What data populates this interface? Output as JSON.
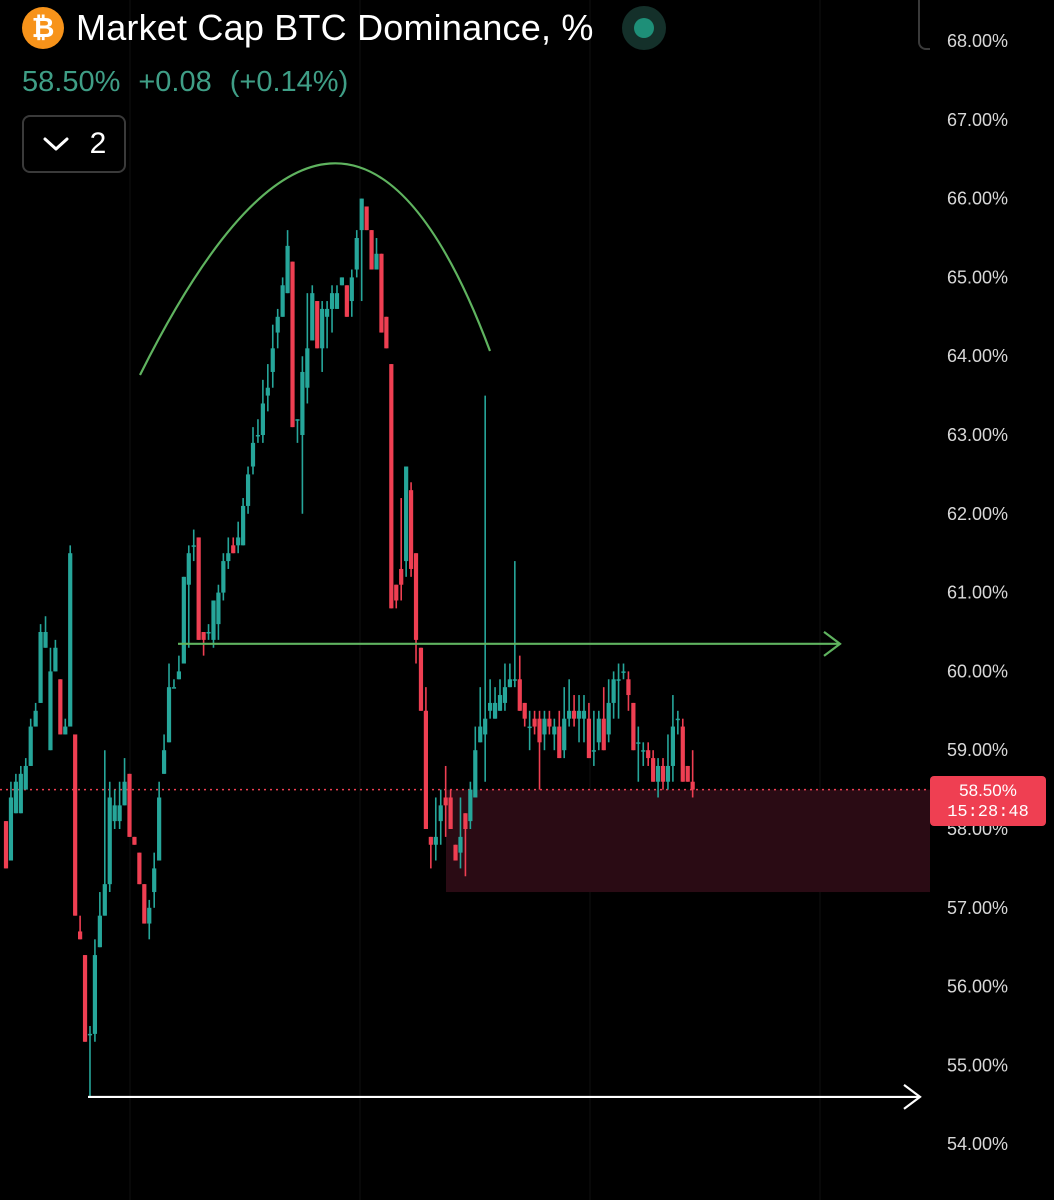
{
  "header": {
    "coin_symbol": "₿",
    "title": "Market Cap BTC Dominance, %",
    "last_value": "58.50%",
    "change_abs": "+0.08",
    "change_pct": "(+0.14%)",
    "collapse_count": "2"
  },
  "icons": {
    "coin": "bitcoin-icon",
    "live": "live-status-dot-icon",
    "collapse": "chevron-down-icon"
  },
  "colors": {
    "background": "#000000",
    "up": "#26a69a",
    "down": "#ef3f52",
    "coin": "#f7931a",
    "annotation_green": "#5fb35f",
    "annotation_white": "#ffffff",
    "zone_fill": "#2a0b14",
    "current_price_line": "#ef3f52",
    "quote_text": "#3f9e86",
    "live_dot": "#1e8f78"
  },
  "price_tag": {
    "value": "58.50%",
    "countdown": "15:28:48"
  },
  "chart_data": {
    "type": "candlestick",
    "title": "Market Cap BTC Dominance, %",
    "y_axis_labels": [
      "68.00%",
      "67.00%",
      "66.00%",
      "65.00%",
      "64.00%",
      "63.00%",
      "62.00%",
      "61.00%",
      "60.00%",
      "59.00%",
      "58.00%",
      "57.00%",
      "56.00%",
      "55.00%",
      "54.00%"
    ],
    "ylim": [
      53.7,
      68.5
    ],
    "y_axis_position": "right",
    "grid": "faint vertical only",
    "current_price": 58.5,
    "candles": [
      [
        58.1,
        58.1,
        57.5,
        57.4
      ],
      [
        57.6,
        57.8,
        58.4,
        58.6
      ],
      [
        58.2,
        58.2,
        58.6,
        58.7
      ],
      [
        58.2,
        58.2,
        58.7,
        58.8
      ],
      [
        58.5,
        58.5,
        58.8,
        58.9
      ],
      [
        58.8,
        58.8,
        59.3,
        59.4
      ],
      [
        59.3,
        59.3,
        59.5,
        59.6
      ],
      [
        59.6,
        59.6,
        60.5,
        60.6
      ],
      [
        60.3,
        60.3,
        60.5,
        60.7
      ],
      [
        59.0,
        59.0,
        60.0,
        60.3
      ],
      [
        60.0,
        60.0,
        60.3,
        60.4
      ],
      [
        59.9,
        59.7,
        59.2,
        59.0
      ],
      [
        59.2,
        59.2,
        59.3,
        59.4
      ],
      [
        59.3,
        59.3,
        61.5,
        61.6
      ],
      [
        59.2,
        59.1,
        56.9,
        56.6
      ],
      [
        56.7,
        56.6,
        56.6,
        56.9
      ],
      [
        56.4,
        56.4,
        55.3,
        55.1
      ],
      [
        55.4,
        54.6,
        55.4,
        55.5
      ],
      [
        55.4,
        55.3,
        56.4,
        56.6
      ],
      [
        56.5,
        56.5,
        56.9,
        57.2
      ],
      [
        56.9,
        56.9,
        57.3,
        59.0
      ],
      [
        57.3,
        57.2,
        58.4,
        58.6
      ],
      [
        58.1,
        58.0,
        58.3,
        58.5
      ],
      [
        58.1,
        58.0,
        58.3,
        58.6
      ],
      [
        58.3,
        58.3,
        58.6,
        58.9
      ],
      [
        58.7,
        58.5,
        57.9,
        57.8
      ],
      [
        57.9,
        57.9,
        57.8,
        57.9
      ],
      [
        57.7,
        57.3,
        57.3,
        57.6
      ],
      [
        57.3,
        56.9,
        56.8,
        57.1
      ],
      [
        56.8,
        56.6,
        57.0,
        57.1
      ],
      [
        57.2,
        57.0,
        57.5,
        57.7
      ],
      [
        57.6,
        57.6,
        58.4,
        58.6
      ],
      [
        58.7,
        58.7,
        59.0,
        59.2
      ],
      [
        59.1,
        59.1,
        59.8,
        60.1
      ],
      [
        59.8,
        59.8,
        59.8,
        59.9
      ],
      [
        59.9,
        59.9,
        60.0,
        60.2
      ],
      [
        60.1,
        60.1,
        61.2,
        61.2
      ],
      [
        61.1,
        60.3,
        61.5,
        61.6
      ],
      [
        61.6,
        61.4,
        61.6,
        61.8
      ],
      [
        61.7,
        61.6,
        60.4,
        60.2
      ],
      [
        60.5,
        60.2,
        60.4,
        60.4
      ],
      [
        60.5,
        60.4,
        60.5,
        60.6
      ],
      [
        60.4,
        60.3,
        60.9,
        60.9
      ],
      [
        60.6,
        60.4,
        61.0,
        61.1
      ],
      [
        61.0,
        60.9,
        61.4,
        61.5
      ],
      [
        61.4,
        61.3,
        61.5,
        61.7
      ],
      [
        61.6,
        61.5,
        61.5,
        61.7
      ],
      [
        61.6,
        61.5,
        61.7,
        61.9
      ],
      [
        61.6,
        61.6,
        62.1,
        62.2
      ],
      [
        62.1,
        62.0,
        62.5,
        62.6
      ],
      [
        62.6,
        62.5,
        62.9,
        63.1
      ],
      [
        63.0,
        62.9,
        63.0,
        63.2
      ],
      [
        63.0,
        62.9,
        63.4,
        63.7
      ],
      [
        63.5,
        63.3,
        63.6,
        63.9
      ],
      [
        63.8,
        63.6,
        64.1,
        64.4
      ],
      [
        64.3,
        64.1,
        64.5,
        64.6
      ],
      [
        64.5,
        64.5,
        64.9,
        65.0
      ],
      [
        64.8,
        64.8,
        65.4,
        65.6
      ],
      [
        65.2,
        64.6,
        63.1,
        62.9
      ],
      [
        63.2,
        62.9,
        63.2,
        63.2
      ],
      [
        63.0,
        62.0,
        63.8,
        64.0
      ],
      [
        63.6,
        63.4,
        64.1,
        64.8
      ],
      [
        64.2,
        64.2,
        64.8,
        64.9
      ],
      [
        64.7,
        64.7,
        64.1,
        64.0
      ],
      [
        64.1,
        63.8,
        64.6,
        64.7
      ],
      [
        64.5,
        64.1,
        64.6,
        64.7
      ],
      [
        64.6,
        64.3,
        64.8,
        64.9
      ],
      [
        64.6,
        64.6,
        64.8,
        64.9
      ],
      [
        64.9,
        64.9,
        65.0,
        65.0
      ],
      [
        64.9,
        64.6,
        64.5,
        64.6
      ],
      [
        64.7,
        64.5,
        65.0,
        65.1
      ],
      [
        65.1,
        65.0,
        65.5,
        65.6
      ],
      [
        65.6,
        64.7,
        66.0,
        66.0
      ],
      [
        65.9,
        65.7,
        65.6,
        65.6
      ],
      [
        65.6,
        65.2,
        65.1,
        65.3
      ],
      [
        65.1,
        65.1,
        65.3,
        65.5
      ],
      [
        65.3,
        64.4,
        64.3,
        64.8
      ],
      [
        64.5,
        64.3,
        64.1,
        64.2
      ],
      [
        63.9,
        63.9,
        60.8,
        60.9
      ],
      [
        61.1,
        60.8,
        60.9,
        61.1
      ],
      [
        61.3,
        60.9,
        61.1,
        62.2
      ],
      [
        61.4,
        61.2,
        62.6,
        62.6
      ],
      [
        62.3,
        61.2,
        61.3,
        62.4
      ],
      [
        61.5,
        60.1,
        60.4,
        60.6
      ],
      [
        60.3,
        59.6,
        59.5,
        59.8
      ],
      [
        59.5,
        58.7,
        58.0,
        59.8
      ],
      [
        57.9,
        57.5,
        57.8,
        57.9
      ],
      [
        57.8,
        57.6,
        57.9,
        58.4
      ],
      [
        58.1,
        57.8,
        58.3,
        58.5
      ],
      [
        58.4,
        57.9,
        58.3,
        58.8
      ],
      [
        58.4,
        58.1,
        58.0,
        58.5
      ],
      [
        57.8,
        57.6,
        57.6,
        57.8
      ],
      [
        57.7,
        57.5,
        57.9,
        58.4
      ],
      [
        58.2,
        57.4,
        58.0,
        58.1
      ],
      [
        58.1,
        58.0,
        58.5,
        58.6
      ],
      [
        58.4,
        58.4,
        59.0,
        59.3
      ],
      [
        59.1,
        59.1,
        59.3,
        59.8
      ],
      [
        59.2,
        58.6,
        59.4,
        63.5
      ],
      [
        59.5,
        59.4,
        59.6,
        59.9
      ],
      [
        59.4,
        59.4,
        59.6,
        59.8
      ],
      [
        59.5,
        59.5,
        59.7,
        59.9
      ],
      [
        59.6,
        59.5,
        59.8,
        60.1
      ],
      [
        59.8,
        59.8,
        59.9,
        60.1
      ],
      [
        59.9,
        59.8,
        59.9,
        61.4
      ],
      [
        59.9,
        59.6,
        59.5,
        60.2
      ],
      [
        59.6,
        59.3,
        59.4,
        59.6
      ],
      [
        59.3,
        59.0,
        59.3,
        59.5
      ],
      [
        59.4,
        59.2,
        59.3,
        59.5
      ],
      [
        59.4,
        58.5,
        59.1,
        59.5
      ],
      [
        59.2,
        59.0,
        59.4,
        59.5
      ],
      [
        59.4,
        59.2,
        59.3,
        59.5
      ],
      [
        59.2,
        59.0,
        59.3,
        59.4
      ],
      [
        59.3,
        59.0,
        58.9,
        59.5
      ],
      [
        59.0,
        58.9,
        59.4,
        59.8
      ],
      [
        59.4,
        59.3,
        59.5,
        59.9
      ],
      [
        59.5,
        59.3,
        59.4,
        59.7
      ],
      [
        59.4,
        59.1,
        59.5,
        59.7
      ],
      [
        59.4,
        59.1,
        59.5,
        59.7
      ],
      [
        59.4,
        58.9,
        58.9,
        59.6
      ],
      [
        59.0,
        58.8,
        59.0,
        59.5
      ],
      [
        59.1,
        59.0,
        59.4,
        59.5
      ],
      [
        59.4,
        59.1,
        59.0,
        59.8
      ],
      [
        59.2,
        59.1,
        59.6,
        59.9
      ],
      [
        59.6,
        59.4,
        59.9,
        60.0
      ],
      [
        59.9,
        59.4,
        59.9,
        60.1
      ],
      [
        60.0,
        59.9,
        60.0,
        60.1
      ],
      [
        59.9,
        59.5,
        59.7,
        60.0
      ],
      [
        59.6,
        59.4,
        59.0,
        59.6
      ],
      [
        59.1,
        58.6,
        59.1,
        59.3
      ],
      [
        59.0,
        58.8,
        59.0,
        59.1
      ],
      [
        59.0,
        58.8,
        58.9,
        59.1
      ],
      [
        58.9,
        58.7,
        58.6,
        59.0
      ],
      [
        58.6,
        58.4,
        58.8,
        58.9
      ],
      [
        58.8,
        58.5,
        58.6,
        58.9
      ],
      [
        58.6,
        58.5,
        58.8,
        59.2
      ],
      [
        58.8,
        58.6,
        59.3,
        59.7
      ],
      [
        59.4,
        59.2,
        59.4,
        59.5
      ],
      [
        59.3,
        58.6,
        58.6,
        59.4
      ],
      [
        58.8,
        58.6,
        58.6,
        58.8
      ],
      [
        58.6,
        58.4,
        58.5,
        59.0
      ]
    ],
    "annotations": [
      {
        "kind": "arc",
        "desc": "rounded top",
        "color": "annotation_green"
      },
      {
        "kind": "arrow",
        "desc": "support line",
        "value": 60.35,
        "color": "annotation_green"
      },
      {
        "kind": "arrow",
        "desc": "low line",
        "value": 54.6,
        "color": "annotation_white"
      },
      {
        "kind": "zone",
        "from": 57.2,
        "to": 58.5,
        "color": "zone_fill"
      }
    ]
  }
}
